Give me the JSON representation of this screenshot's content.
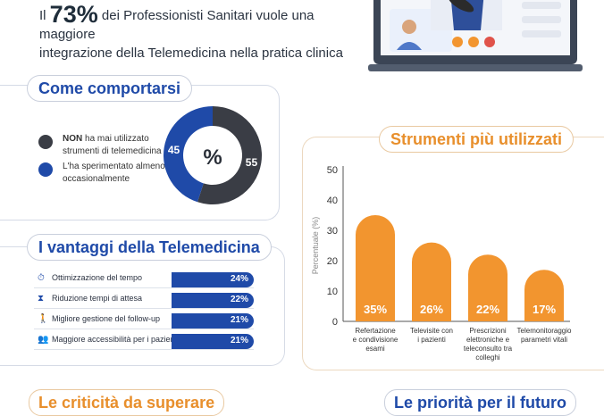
{
  "headline": {
    "prefix": "Il",
    "big_value": "73%",
    "line1": "dei Professionisti Sanitari vuole una maggiore",
    "line2": "integrazione della Telemedicina nella pratica clinica"
  },
  "section_behaviour": {
    "title": "Come comportarsi",
    "center_label": "%",
    "legend": [
      {
        "bold": "NON",
        "text_line1": " ha mai utilizzato",
        "text_line2": "strumenti di telemedicina",
        "color": "#3a3d45"
      },
      {
        "bold": "",
        "text_line1": "L'ha sperimentato almeno",
        "text_line2": "occasionalmente",
        "color": "#1f4aa8"
      }
    ]
  },
  "section_advantages": {
    "title": "I vantaggi della Telemedicina",
    "items": [
      {
        "icon": "clock-icon",
        "glyph": "⏱",
        "label": "Ottimizzazione del tempo",
        "value": "24%"
      },
      {
        "icon": "hourglass-icon",
        "glyph": "⧗",
        "label": "Riduzione tempi di attesa",
        "value": "22%"
      },
      {
        "icon": "walking-person-icon",
        "glyph": "🚶",
        "label": "Migliore gestione del follow-up",
        "value": "21%"
      },
      {
        "icon": "people-icon",
        "glyph": "👥",
        "label": "Maggiore accessibilità per i pazienti",
        "value": "21%"
      }
    ]
  },
  "section_tools": {
    "title": "Strumenti più utilizzati"
  },
  "teasers": {
    "left": "Le criticità da superare",
    "right": "Le priorità per il futuro"
  },
  "colors": {
    "blue": "#1f4aa8",
    "dark": "#3a3d45",
    "orange": "#f2952f"
  },
  "chart_data": [
    {
      "type": "pie",
      "title": "",
      "slices": [
        {
          "label": "NON ha mai utilizzato strumenti di telemedicina",
          "value": 55,
          "display": "55",
          "color": "#3a3d45"
        },
        {
          "label": "L'ha sperimentato almeno occasionalmente",
          "value": 45,
          "display": "45",
          "color": "#1f4aa8"
        }
      ]
    },
    {
      "type": "bar",
      "title": "Strumenti più utilizzati",
      "ylabel": "Percentuale (%)",
      "xlabel": "",
      "ylim": [
        0,
        50
      ],
      "yticks": [
        0,
        10,
        20,
        30,
        40,
        50
      ],
      "grid": false,
      "categories": [
        [
          "Refertazione",
          "e condivisione",
          "esami"
        ],
        [
          "Televisite con",
          "i pazienti"
        ],
        [
          "Prescrizioni",
          "elettroniche e",
          "teleconsulto tra",
          "colleghi"
        ],
        [
          "Telemonitoraggio",
          "parametri vitali"
        ]
      ],
      "values": [
        35,
        26,
        22,
        17
      ],
      "value_labels": [
        "35%",
        "26%",
        "22%",
        "17%"
      ],
      "color": "#f2952f"
    }
  ]
}
